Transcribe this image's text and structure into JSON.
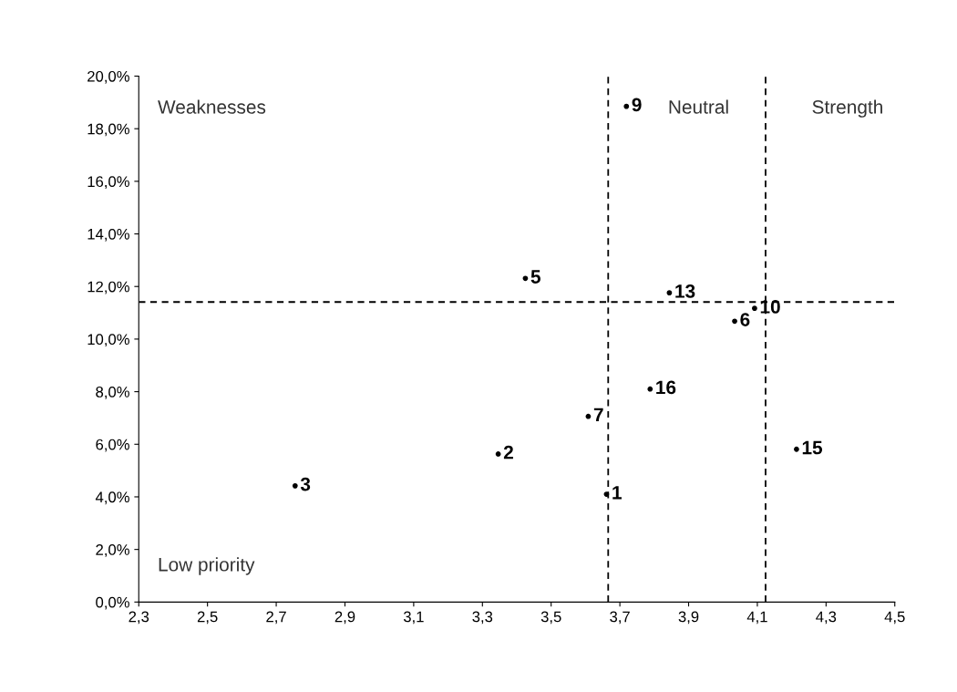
{
  "chart_data": {
    "type": "scatter",
    "marker": "circle",
    "grid": false,
    "legend": false,
    "series": [
      {
        "name": "3",
        "color": "#000000",
        "x": [
          2.755
        ],
        "values": [
          4.42
        ]
      },
      {
        "name": "2",
        "color": "#000000",
        "x": [
          3.346
        ],
        "values": [
          5.63
        ]
      },
      {
        "name": "5",
        "color": "#000000",
        "x": [
          3.425
        ],
        "values": [
          12.31
        ]
      },
      {
        "name": "7",
        "color": "#000000",
        "x": [
          3.608
        ],
        "values": [
          7.06
        ]
      },
      {
        "name": "1",
        "color": "#000000",
        "x": [
          3.661
        ],
        "values": [
          4.1
        ]
      },
      {
        "name": "9",
        "color": "#000000",
        "x": [
          3.719
        ],
        "values": [
          18.85
        ]
      },
      {
        "name": "13",
        "color": "#000000",
        "x": [
          3.844
        ],
        "values": [
          11.76
        ]
      },
      {
        "name": "16",
        "color": "#000000",
        "x": [
          3.788
        ],
        "values": [
          8.1
        ]
      },
      {
        "name": "6",
        "color": "#000000",
        "x": [
          4.034
        ],
        "values": [
          10.68
        ]
      },
      {
        "name": "10",
        "color": "#000000",
        "x": [
          4.092
        ],
        "values": [
          11.17
        ]
      },
      {
        "name": "15",
        "color": "#000000",
        "x": [
          4.214
        ],
        "values": [
          5.81
        ]
      }
    ],
    "xlim": [
      2.3,
      4.5
    ],
    "xticks": [
      {
        "value": 2.3,
        "label": "2,3"
      },
      {
        "value": 2.5,
        "label": "2,5"
      },
      {
        "value": 2.7,
        "label": "2,7"
      },
      {
        "value": 2.9,
        "label": "2,9"
      },
      {
        "value": 3.1,
        "label": "3,1"
      },
      {
        "value": 3.3,
        "label": "3,3"
      },
      {
        "value": 3.5,
        "label": "3,5"
      },
      {
        "value": 3.7,
        "label": "3,7"
      },
      {
        "value": 3.9,
        "label": "3,9"
      },
      {
        "value": 4.1,
        "label": "4,1"
      },
      {
        "value": 4.3,
        "label": "4,3"
      },
      {
        "value": 4.5,
        "label": "4,5"
      }
    ],
    "ylim": [
      0,
      20
    ],
    "yticks": [
      {
        "value": 0,
        "label": "0,0%"
      },
      {
        "value": 2,
        "label": "2,0%"
      },
      {
        "value": 4,
        "label": "4,0%"
      },
      {
        "value": 6,
        "label": "6,0%"
      },
      {
        "value": 8,
        "label": "8,0%"
      },
      {
        "value": 10,
        "label": "10,0%"
      },
      {
        "value": 12,
        "label": "12,0%"
      },
      {
        "value": 14,
        "label": "14,0%"
      },
      {
        "value": 16,
        "label": "16,0%"
      },
      {
        "value": 18,
        "label": "18,0%"
      },
      {
        "value": 20,
        "label": "20,0%"
      }
    ],
    "ref_lines": [
      {
        "axis": "x",
        "value": 3.666,
        "color": "#000000",
        "line_style": "dashed"
      },
      {
        "axis": "x",
        "value": 4.124,
        "color": "#000000",
        "line_style": "dashed"
      },
      {
        "axis": "y",
        "value": 11.41,
        "color": "#000000",
        "line_style": "dashed"
      }
    ],
    "annotations": [
      "Weaknesses",
      "Neutral",
      "Strength",
      "Low priority"
    ]
  }
}
